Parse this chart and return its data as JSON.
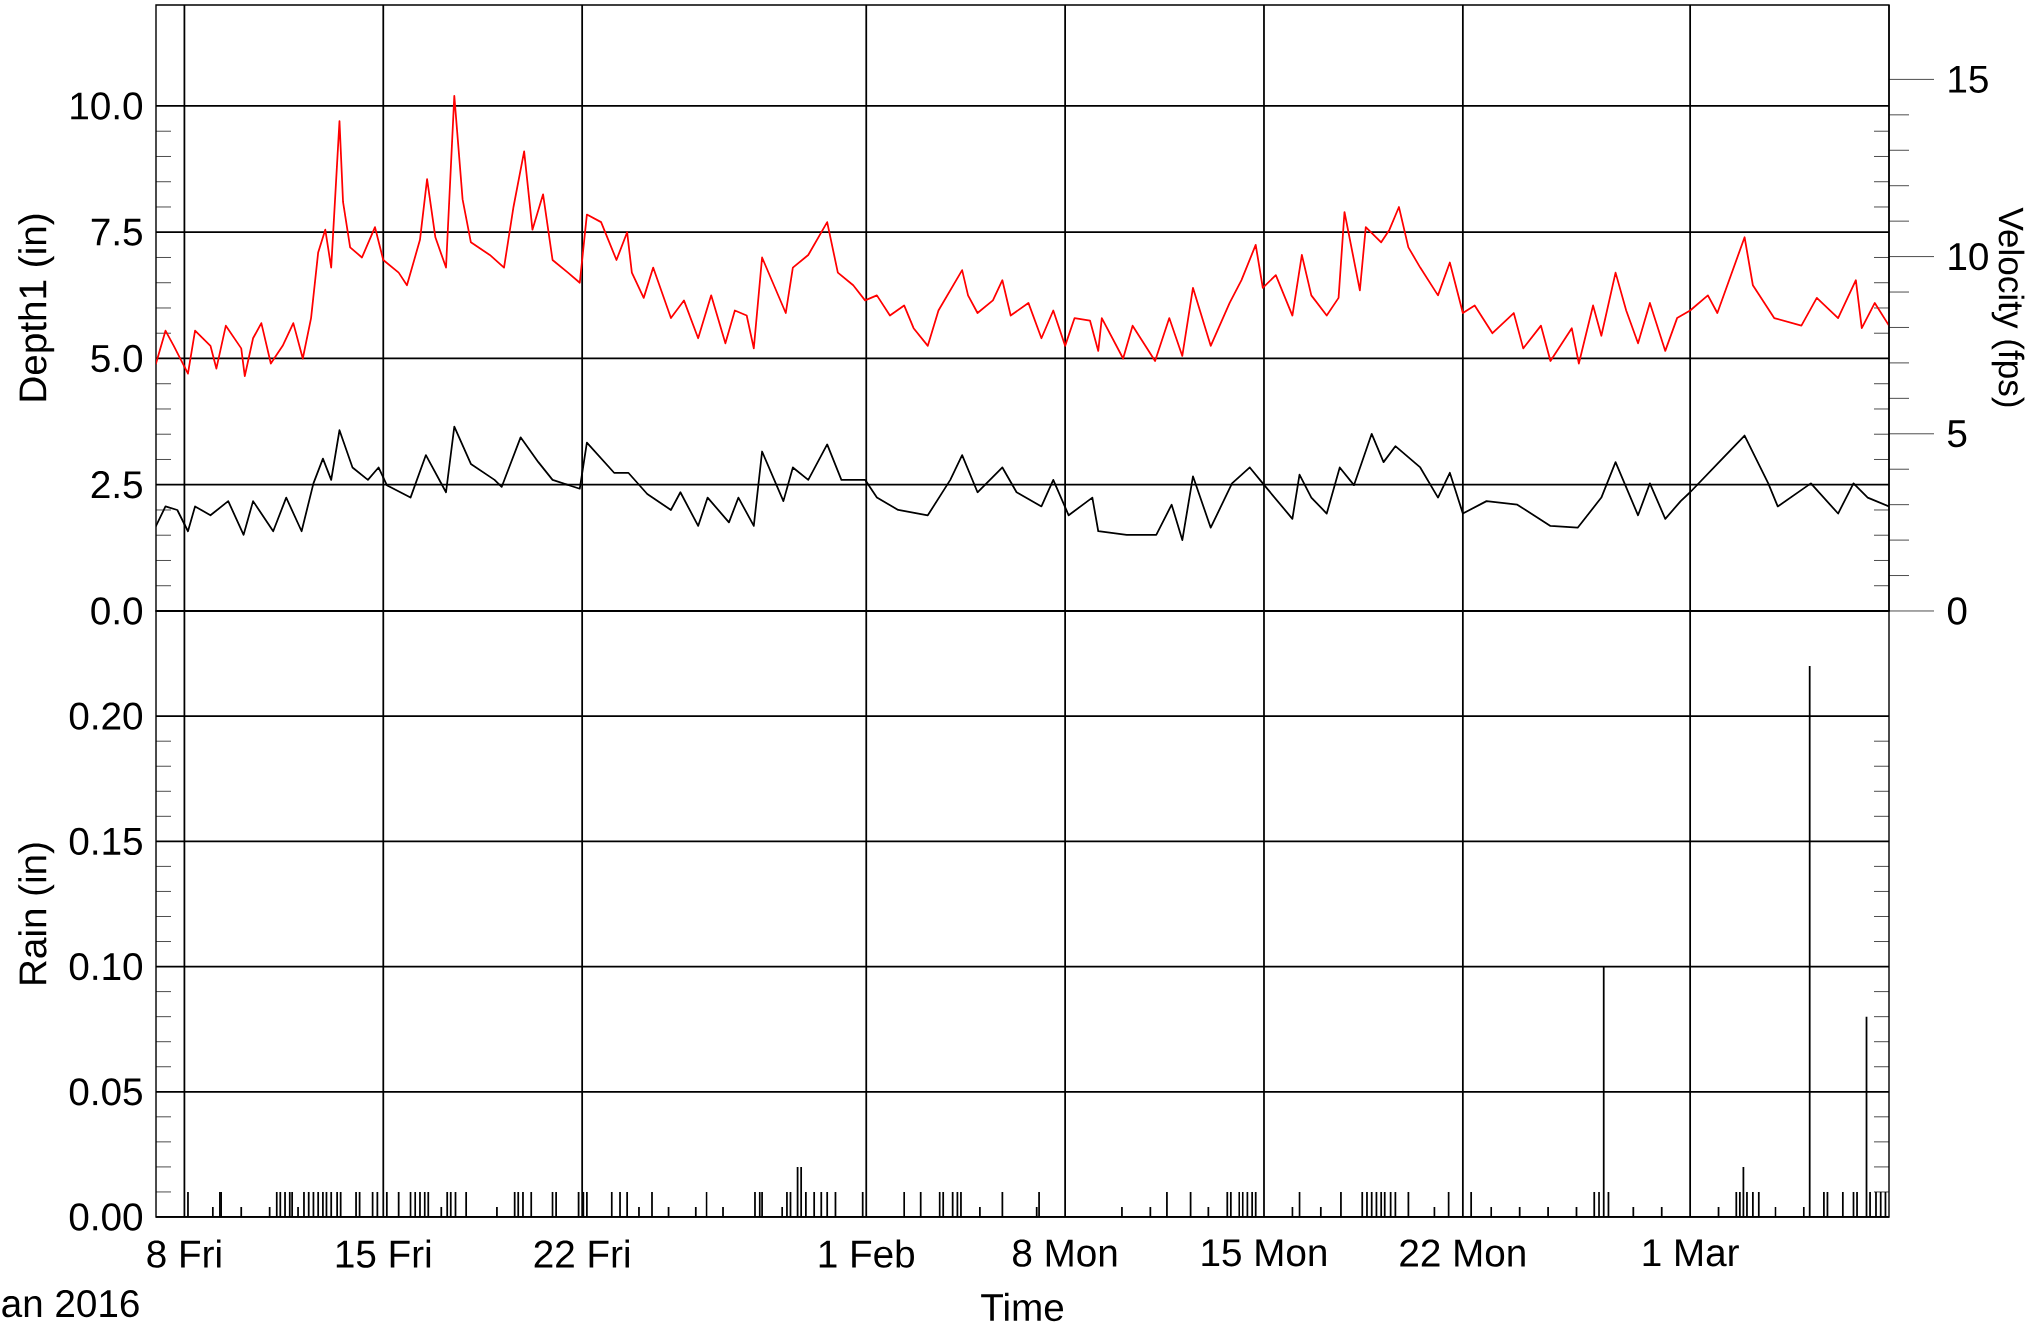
{
  "chart_data": [
    {
      "type": "line",
      "ylabel": "Depth1 (in)",
      "y2label": "Velocity (fps)",
      "grid": true,
      "tick_labels": "y",
      "xlim": [
        "2016-01-07",
        "2016-03-08"
      ],
      "xticks": [
        {
          "value": "2016-01-08",
          "label": null
        },
        {
          "value": "2016-01-15",
          "label": null
        },
        {
          "value": "2016-01-22",
          "label": null
        },
        {
          "value": "2016-02-01",
          "label": null
        },
        {
          "value": "2016-02-08",
          "label": null
        },
        {
          "value": "2016-02-15",
          "label": null
        },
        {
          "value": "2016-02-22",
          "label": null
        },
        {
          "value": "2016-03-01",
          "label": null
        }
      ],
      "ylim": [
        0,
        12
      ],
      "yticks": [
        {
          "value": 0,
          "label": "0.0"
        },
        {
          "value": 2.5,
          "label": "2.5"
        },
        {
          "value": 5,
          "label": "5.0"
        },
        {
          "value": 7.5,
          "label": "7.5"
        },
        {
          "value": 10,
          "label": "10.0"
        }
      ],
      "y2lim": [
        0,
        17.1
      ],
      "y2ticks": [
        0,
        5,
        10,
        15
      ],
      "series": [
        {
          "color": "#ff0000",
          "axis": "y",
          "x": [
            "2016-01-07T00:00",
            "2016-01-07T08:00",
            "2016-01-07T15:00",
            "2016-01-08T03:00",
            "2016-01-08T09:00",
            "2016-01-08T22:00",
            "2016-01-09T03:00",
            "2016-01-09T11:00",
            "2016-01-10T00:00",
            "2016-01-10T03:00",
            "2016-01-10T10:00",
            "2016-01-10T17:00",
            "2016-01-11T01:00",
            "2016-01-11T11:00",
            "2016-01-11T20:00",
            "2016-01-12T04:00",
            "2016-01-12T11:00",
            "2016-01-12T17:00",
            "2016-01-12T23:00",
            "2016-01-13T04:00",
            "2016-01-13T11:00",
            "2016-01-13T14:00",
            "2016-01-13T20:00",
            "2016-01-14T06:00",
            "2016-01-14T17:00",
            "2016-01-15T00:00",
            "2016-01-15T13:00",
            "2016-01-15T20:00",
            "2016-01-16T07:00",
            "2016-01-16T13:00",
            "2016-01-16T20:00",
            "2016-01-17T05:00",
            "2016-01-17T12:00",
            "2016-01-17T19:00",
            "2016-01-18T02:00",
            "2016-01-18T18:00",
            "2016-01-19T06:00",
            "2016-01-19T14:00",
            "2016-01-19T23:00",
            "2016-01-20T06:00",
            "2016-01-20T15:00",
            "2016-01-20T23:00",
            "2016-01-21T12:00",
            "2016-01-21T22:00",
            "2016-01-22T04:00",
            "2016-01-22T16:00",
            "2016-01-23T05:00",
            "2016-01-23T14:00",
            "2016-01-23T18:00",
            "2016-01-24T04:00",
            "2016-01-24T12:00",
            "2016-01-25T03:00",
            "2016-01-25T14:00",
            "2016-01-26T02:00",
            "2016-01-26T13:00",
            "2016-01-27T01:00",
            "2016-01-27T09:00",
            "2016-01-27T19:00",
            "2016-01-28T01:00",
            "2016-01-28T08:00",
            "2016-01-28T18:00",
            "2016-01-29T04:00",
            "2016-01-29T10:00",
            "2016-01-29T23:00",
            "2016-01-30T15:00",
            "2016-01-31T00:00",
            "2016-01-31T13:00",
            "2016-01-31T23:00",
            "2016-02-01T09:00",
            "2016-02-01T20:00",
            "2016-02-02T08:00",
            "2016-02-02T16:00",
            "2016-02-03T04:00",
            "2016-02-03T13:00",
            "2016-02-04T09:00",
            "2016-02-04T14:00",
            "2016-02-04T22:00",
            "2016-02-05T11:00",
            "2016-02-05T19:00",
            "2016-02-06T02:00",
            "2016-02-06T17:00",
            "2016-02-07T04:00",
            "2016-02-07T14:00",
            "2016-02-08T00:00",
            "2016-02-08T08:00",
            "2016-02-08T21:00",
            "2016-02-09T04:00",
            "2016-02-09T07:00",
            "2016-02-10T01:00",
            "2016-02-10T09:00",
            "2016-02-11T04:00",
            "2016-02-11T16:00",
            "2016-02-12T03:00",
            "2016-02-12T12:00",
            "2016-02-13T03:00",
            "2016-02-13T19:00",
            "2016-02-14T05:00",
            "2016-02-14T17:00",
            "2016-02-14T23:00",
            "2016-02-15T10:00",
            "2016-02-16T00:00",
            "2016-02-16T08:00",
            "2016-02-16T16:00",
            "2016-02-17T05:00",
            "2016-02-17T15:00",
            "2016-02-17T20:00",
            "2016-02-18T09:00",
            "2016-02-18T14:00",
            "2016-02-19T03:00",
            "2016-02-19T10:00",
            "2016-02-19T18:00",
            "2016-02-20T02:00",
            "2016-02-20T12:00",
            "2016-02-21T03:00",
            "2016-02-21T13:00",
            "2016-02-22T00:00",
            "2016-02-22T10:00",
            "2016-02-23T01:00",
            "2016-02-23T19:00",
            "2016-02-24T03:00",
            "2016-02-24T18:00",
            "2016-02-25T02:00",
            "2016-02-25T20:00",
            "2016-02-26T02:00",
            "2016-02-26T14:00",
            "2016-02-26T21:00",
            "2016-02-27T09:00",
            "2016-02-27T18:00",
            "2016-02-28T04:00",
            "2016-02-28T14:00",
            "2016-02-29T03:00",
            "2016-02-29T13:00",
            "2016-03-01T00:00",
            "2016-03-01T15:00",
            "2016-03-01T23:00",
            "2016-03-02T22:00",
            "2016-03-03T05:00",
            "2016-03-03T23:00",
            "2016-03-04T22:00",
            "2016-03-05T11:00",
            "2016-03-06T05:00",
            "2016-03-06T20:00",
            "2016-03-07T01:00",
            "2016-03-07T12:00",
            "2016-03-08T00:00"
          ],
          "values": [
            4.9,
            5.55,
            5.25,
            4.7,
            5.55,
            5.25,
            4.8,
            5.65,
            5.2,
            4.65,
            5.4,
            5.7,
            4.9,
            5.25,
            5.7,
            5.0,
            5.8,
            7.1,
            7.55,
            6.8,
            9.7,
            8.1,
            7.2,
            7.0,
            7.6,
            6.95,
            6.7,
            6.45,
            7.35,
            8.55,
            7.4,
            6.8,
            10.2,
            8.15,
            7.3,
            7.05,
            6.8,
            8.0,
            9.1,
            7.55,
            8.25,
            6.95,
            6.7,
            6.5,
            7.85,
            7.7,
            6.95,
            7.5,
            6.7,
            6.2,
            6.8,
            5.8,
            6.15,
            5.4,
            6.25,
            5.3,
            5.95,
            5.85,
            5.2,
            7.0,
            6.45,
            5.9,
            6.8,
            7.05,
            7.7,
            6.7,
            6.45,
            6.15,
            6.25,
            5.85,
            6.05,
            5.6,
            5.25,
            5.95,
            6.75,
            6.25,
            5.9,
            6.15,
            6.55,
            5.85,
            6.1,
            5.4,
            5.95,
            5.25,
            5.8,
            5.75,
            5.15,
            5.8,
            5.0,
            5.65,
            4.95,
            5.8,
            5.05,
            6.4,
            5.25,
            6.1,
            6.55,
            7.25,
            6.4,
            6.65,
            5.85,
            7.05,
            6.25,
            5.85,
            6.2,
            7.9,
            6.35,
            7.6,
            7.3,
            7.55,
            8.0,
            7.2,
            6.8,
            6.25,
            6.9,
            5.9,
            6.05,
            5.5,
            5.9,
            5.2,
            5.65,
            4.95,
            5.6,
            4.9,
            6.05,
            5.45,
            6.7,
            5.95,
            5.3,
            6.1,
            5.15,
            5.8,
            5.95,
            6.25,
            5.9,
            7.4,
            6.45,
            5.8,
            5.65,
            6.2,
            5.8,
            6.55,
            5.6,
            6.1,
            5.65
          ]
        },
        {
          "color": "#000000",
          "axis": "y2",
          "x": [
            "2016-01-07T00:00",
            "2016-01-07T08:00",
            "2016-01-07T18:00",
            "2016-01-08T03:00",
            "2016-01-08T09:00",
            "2016-01-08T22:00",
            "2016-01-09T13:00",
            "2016-01-10T02:00",
            "2016-01-10T10:00",
            "2016-01-11T03:00",
            "2016-01-11T14:00",
            "2016-01-12T03:00",
            "2016-01-12T13:00",
            "2016-01-12T21:00",
            "2016-01-13T04:00",
            "2016-01-13T11:00",
            "2016-01-13T22:00",
            "2016-01-14T11:00",
            "2016-01-14T20:00",
            "2016-01-15T03:00",
            "2016-01-15T23:00",
            "2016-01-16T12:00",
            "2016-01-17T05:00",
            "2016-01-17T12:00",
            "2016-01-18T02:00",
            "2016-01-18T22:00",
            "2016-01-19T04:00",
            "2016-01-19T20:00",
            "2016-01-20T11:00",
            "2016-01-20T23:00",
            "2016-01-21T22:00",
            "2016-01-22T04:00",
            "2016-01-23T03:00",
            "2016-01-23T15:00",
            "2016-01-24T07:00",
            "2016-01-25T03:00",
            "2016-01-25T11:00",
            "2016-01-26T02:00",
            "2016-01-26T10:00",
            "2016-01-27T04:00",
            "2016-01-27T12:00",
            "2016-01-28T01:00",
            "2016-01-28T08:00",
            "2016-01-29T02:00",
            "2016-01-29T10:00",
            "2016-01-29T23:00",
            "2016-01-30T15:00",
            "2016-01-31T03:00",
            "2016-01-31T23:00",
            "2016-02-01T09:00",
            "2016-02-02T03:00",
            "2016-02-03T04:00",
            "2016-02-03T23:00",
            "2016-02-04T09:00",
            "2016-02-04T22:00",
            "2016-02-05T19:00",
            "2016-02-06T07:00",
            "2016-02-07T04:00",
            "2016-02-07T14:00",
            "2016-02-08T03:00",
            "2016-02-08T23:00",
            "2016-02-09T04:00",
            "2016-02-10T04:00",
            "2016-02-11T05:00",
            "2016-02-11T18:00",
            "2016-02-12T03:00",
            "2016-02-12T12:00",
            "2016-02-13T03:00",
            "2016-02-13T21:00",
            "2016-02-14T12:00",
            "2016-02-14T23:00",
            "2016-02-16T00:00",
            "2016-02-16T06:00",
            "2016-02-16T16:00",
            "2016-02-17T05:00",
            "2016-02-17T16:00",
            "2016-02-18T04:00",
            "2016-02-18T19:00",
            "2016-02-19T05:00",
            "2016-02-19T15:00",
            "2016-02-20T12:00",
            "2016-02-21T03:00",
            "2016-02-21T13:00",
            "2016-02-22T00:00",
            "2016-02-22T20:00",
            "2016-02-23T22:00",
            "2016-02-25T02:00",
            "2016-02-26T01:00",
            "2016-02-26T21:00",
            "2016-02-27T09:00",
            "2016-02-28T04:00",
            "2016-02-28T14:00",
            "2016-02-29T03:00",
            "2016-02-29T16:00",
            "2016-03-01T00:00",
            "2016-03-01T23:00",
            "2016-03-02T22:00",
            "2016-03-03T18:00",
            "2016-03-04T02:00",
            "2016-03-05T06:00",
            "2016-03-06T05:00",
            "2016-03-06T18:00",
            "2016-03-07T06:00",
            "2016-03-08T00:00"
          ],
          "values": [
            2.4,
            2.95,
            2.85,
            2.25,
            2.95,
            2.7,
            3.1,
            2.15,
            3.1,
            2.25,
            3.2,
            2.25,
            3.6,
            4.3,
            3.7,
            5.1,
            4.05,
            3.7,
            4.05,
            3.55,
            3.2,
            4.4,
            3.35,
            5.2,
            4.15,
            3.7,
            3.5,
            4.9,
            4.2,
            3.7,
            3.45,
            4.75,
            3.9,
            3.9,
            3.3,
            2.85,
            3.35,
            2.4,
            3.2,
            2.5,
            3.2,
            2.4,
            4.5,
            3.1,
            4.05,
            3.7,
            4.7,
            3.7,
            3.7,
            3.2,
            2.85,
            2.7,
            3.7,
            4.4,
            3.35,
            4.05,
            3.35,
            2.95,
            3.7,
            2.7,
            3.2,
            2.25,
            2.15,
            2.15,
            3.0,
            2.0,
            3.8,
            2.35,
            3.6,
            4.05,
            3.6,
            2.6,
            3.85,
            3.2,
            2.75,
            4.05,
            3.55,
            5.0,
            4.2,
            4.65,
            4.05,
            3.2,
            3.9,
            2.75,
            3.1,
            3.0,
            2.4,
            2.35,
            3.2,
            4.2,
            2.7,
            3.6,
            2.6,
            3.1,
            3.35,
            4.15,
            4.95,
            3.6,
            2.95,
            3.6,
            2.75,
            3.6,
            3.2,
            2.95
          ]
        }
      ]
    },
    {
      "type": "bar",
      "xlabel": "Time",
      "ylabel": "Rain (in)",
      "grid": true,
      "color": "#000000",
      "annotations": [
        "an 2016"
      ],
      "xlim": [
        "2016-01-07",
        "2016-03-08"
      ],
      "xticks": [
        {
          "value": "2016-01-08",
          "label": "8 Fri"
        },
        {
          "value": "2016-01-15",
          "label": "15 Fri"
        },
        {
          "value": "2016-01-22",
          "label": "22 Fri"
        },
        {
          "value": "2016-02-01",
          "label": "1 Feb"
        },
        {
          "value": "2016-02-08",
          "label": "8 Mon"
        },
        {
          "value": "2016-02-15",
          "label": "15 Mon"
        },
        {
          "value": "2016-02-22",
          "label": "22 Mon"
        },
        {
          "value": "2016-03-01",
          "label": "1 Mar"
        }
      ],
      "ylim": [
        0,
        0.242
      ],
      "yticks": [
        {
          "value": 0,
          "label": "0.00"
        },
        {
          "value": 0.05,
          "label": "0.05"
        },
        {
          "value": 0.1,
          "label": "0.10"
        },
        {
          "value": 0.15,
          "label": "0.15"
        },
        {
          "value": 0.2,
          "label": "0.20"
        }
      ],
      "x": [
        "2016-01-08T03:00",
        "2016-01-09T00:00",
        "2016-01-09T06:00",
        "2016-01-09T07:00",
        "2016-01-10T00:00",
        "2016-01-11T00:00",
        "2016-01-11T06:00",
        "2016-01-11T09:00",
        "2016-01-11T13:00",
        "2016-01-11T17:00",
        "2016-01-11T19:00",
        "2016-01-12T00:00",
        "2016-01-12T05:00",
        "2016-01-12T09:00",
        "2016-01-12T13:00",
        "2016-01-12T17:00",
        "2016-01-12T21:00",
        "2016-01-13T00:00",
        "2016-01-13T04:00",
        "2016-01-13T09:00",
        "2016-01-13T12:00",
        "2016-01-14T01:00",
        "2016-01-14T04:00",
        "2016-01-14T15:00",
        "2016-01-14T19:00",
        "2016-01-15T03:00",
        "2016-01-15T13:00",
        "2016-01-15T23:00",
        "2016-01-16T03:00",
        "2016-01-16T07:00",
        "2016-01-16T11:00",
        "2016-01-16T14:00",
        "2016-01-17T01:00",
        "2016-01-17T06:00",
        "2016-01-17T09:00",
        "2016-01-17T13:00",
        "2016-01-17T22:00",
        "2016-01-19T00:00",
        "2016-01-19T15:00",
        "2016-01-19T18:00",
        "2016-01-19T22:00",
        "2016-01-20T05:00",
        "2016-01-20T23:00",
        "2016-01-21T02:00",
        "2016-01-21T21:00",
        "2016-01-22T01:00",
        "2016-01-22T04:00",
        "2016-01-23T01:00",
        "2016-01-23T08:00",
        "2016-01-23T14:00",
        "2016-01-24T00:00",
        "2016-01-24T11:00",
        "2016-01-25T01:00",
        "2016-01-26T00:00",
        "2016-01-26T09:00",
        "2016-01-26T23:00",
        "2016-01-28T02:00",
        "2016-01-28T06:00",
        "2016-01-28T08:00",
        "2016-01-29T01:00",
        "2016-01-29T05:00",
        "2016-01-29T08:00",
        "2016-01-29T14:00",
        "2016-01-29T17:00",
        "2016-01-29T21:00",
        "2016-01-30T04:00",
        "2016-01-30T10:00",
        "2016-01-30T15:00",
        "2016-01-30T22:00",
        "2016-01-31T21:00",
        "2016-02-02T08:00",
        "2016-02-02T22:00",
        "2016-02-03T14:00",
        "2016-02-03T17:00",
        "2016-02-04T01:00",
        "2016-02-04T05:00",
        "2016-02-04T08:00",
        "2016-02-05T00:00",
        "2016-02-05T19:00",
        "2016-02-07T00:00",
        "2016-02-07T02:00",
        "2016-02-10T00:00",
        "2016-02-11T00:00",
        "2016-02-11T14:00",
        "2016-02-12T10:00",
        "2016-02-13T01:00",
        "2016-02-13T17:00",
        "2016-02-13T20:00",
        "2016-02-14T03:00",
        "2016-02-14T06:00",
        "2016-02-14T10:00",
        "2016-02-14T14:00",
        "2016-02-14T17:00",
        "2016-02-16T00:00",
        "2016-02-16T06:00",
        "2016-02-17T00:00",
        "2016-02-17T17:00",
        "2016-02-18T11:00",
        "2016-02-18T15:00",
        "2016-02-18T19:00",
        "2016-02-18T23:00",
        "2016-02-19T03:00",
        "2016-02-19T06:00",
        "2016-02-19T11:00",
        "2016-02-19T15:00",
        "2016-02-20T02:00",
        "2016-02-21T00:00",
        "2016-02-21T12:00",
        "2016-02-22T07:00",
        "2016-02-23T00:00",
        "2016-02-24T00:00",
        "2016-02-25T00:00",
        "2016-02-26T00:00",
        "2016-02-26T15:00",
        "2016-02-26T19:00",
        "2016-02-26T23:00",
        "2016-02-27T03:00",
        "2016-02-28T00:00",
        "2016-02-29T00:00",
        "2016-03-02T00:00",
        "2016-03-02T15:00",
        "2016-03-02T18:00",
        "2016-03-02T21:00",
        "2016-03-03T00:00",
        "2016-03-03T05:00",
        "2016-03-03T10:00",
        "2016-03-04T00:00",
        "2016-03-05T00:00",
        "2016-03-05T05:00",
        "2016-03-05T17:00",
        "2016-03-05T20:00",
        "2016-03-06T09:00",
        "2016-03-06T18:00",
        "2016-03-06T21:00",
        "2016-03-07T05:00",
        "2016-03-07T08:00",
        "2016-03-07T13:00",
        "2016-03-07T17:00",
        "2016-03-07T21:00"
      ],
      "values": [
        0.01,
        0.004,
        0.01,
        0.01,
        0.004,
        0.004,
        0.01,
        0.01,
        0.01,
        0.01,
        0.01,
        0.004,
        0.01,
        0.01,
        0.01,
        0.01,
        0.01,
        0.01,
        0.01,
        0.01,
        0.01,
        0.01,
        0.01,
        0.01,
        0.01,
        0.01,
        0.01,
        0.01,
        0.01,
        0.01,
        0.01,
        0.01,
        0.004,
        0.01,
        0.01,
        0.01,
        0.01,
        0.004,
        0.01,
        0.01,
        0.01,
        0.01,
        0.01,
        0.01,
        0.01,
        0.01,
        0.01,
        0.01,
        0.01,
        0.01,
        0.004,
        0.01,
        0.004,
        0.004,
        0.01,
        0.004,
        0.01,
        0.01,
        0.01,
        0.004,
        0.01,
        0.01,
        0.02,
        0.02,
        0.01,
        0.01,
        0.01,
        0.01,
        0.01,
        0.01,
        0.01,
        0.01,
        0.01,
        0.01,
        0.01,
        0.01,
        0.01,
        0.004,
        0.01,
        0.004,
        0.01,
        0.004,
        0.004,
        0.01,
        0.01,
        0.004,
        0.01,
        0.01,
        0.01,
        0.01,
        0.01,
        0.01,
        0.01,
        0.004,
        0.01,
        0.004,
        0.01,
        0.01,
        0.01,
        0.01,
        0.01,
        0.01,
        0.01,
        0.01,
        0.01,
        0.01,
        0.004,
        0.01,
        0.01,
        0.004,
        0.004,
        0.004,
        0.004,
        0.01,
        0.01,
        0.1,
        0.01,
        0.004,
        0.004,
        0.004,
        0.01,
        0.01,
        0.02,
        0.01,
        0.01,
        0.01,
        0.004,
        0.004,
        0.22,
        0.01,
        0.01,
        0.01,
        0.01,
        0.01,
        0.08,
        0.01,
        0.01,
        0.01,
        0.01
      ]
    }
  ]
}
